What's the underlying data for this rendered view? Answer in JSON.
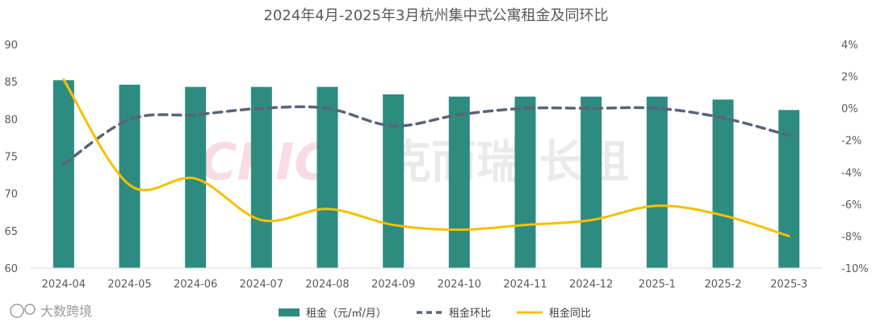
{
  "chart_data": {
    "type": "bar",
    "title": "2024年4月-2025年3月杭州集中式公寓租金及同环比",
    "categories": [
      "2024-04",
      "2024-05",
      "2024-06",
      "2024-07",
      "2024-08",
      "2024-09",
      "2024-10",
      "2024-11",
      "2024-12",
      "2025-1",
      "2025-2",
      "2025-3"
    ],
    "left_axis": {
      "min": 60,
      "max": 90,
      "step": 5,
      "ticks": [
        "60",
        "65",
        "70",
        "75",
        "80",
        "85",
        "90"
      ]
    },
    "right_axis": {
      "min": -10,
      "max": 4,
      "step": 2,
      "ticks": [
        "-10%",
        "-8%",
        "-6%",
        "-4%",
        "-2%",
        "0%",
        "2%",
        "4%"
      ]
    },
    "series": [
      {
        "name": "租金（元/㎡/月）",
        "kind": "bar",
        "axis": "left",
        "color": "#2e8b7f",
        "values": [
          85.2,
          84.6,
          84.3,
          84.3,
          84.3,
          83.3,
          83.0,
          83.0,
          83.0,
          83.0,
          82.6,
          81.2
        ]
      },
      {
        "name": "租金环比",
        "kind": "dashed-line",
        "axis": "right",
        "color": "#5a6478",
        "values": [
          -3.5,
          -0.7,
          -0.4,
          0.0,
          0.0,
          -1.1,
          -0.4,
          0.0,
          0.0,
          0.0,
          -0.6,
          -1.7
        ]
      },
      {
        "name": "租金同比",
        "kind": "line",
        "axis": "right",
        "color": "#f5c000",
        "values": [
          1.8,
          -4.8,
          -4.4,
          -7.0,
          -6.3,
          -7.3,
          -7.6,
          -7.3,
          -7.0,
          -6.1,
          -6.7,
          -8.0
        ]
      }
    ],
    "legend_position": "bottom",
    "grid": false
  },
  "watermark": {
    "latin": "CRIC",
    "cjk": "克而瑞·长租"
  },
  "source_mark": "大数跨境"
}
